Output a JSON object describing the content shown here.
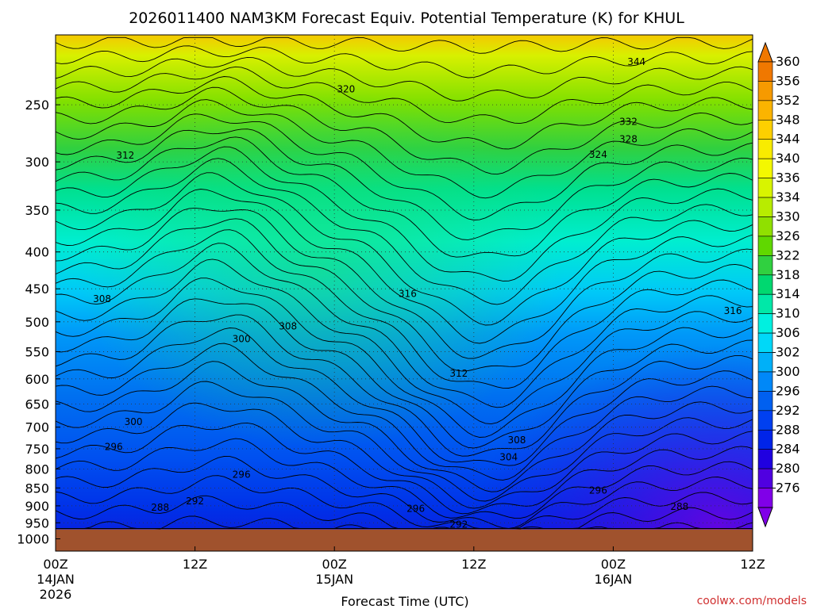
{
  "window": {
    "title": "2026011400 NAM3KM Forecast Equiv. Potential Temperature (K) for KHUL",
    "credit": "coolwx.com/models"
  },
  "chart_data": {
    "type": "heatmap",
    "title": "2026011400 NAM3KM Forecast Equiv. Potential Temperature (K) for KHUL",
    "xlabel": "Forecast Time (UTC)",
    "ylabel": "",
    "x_ticks": [
      {
        "hour": 0,
        "label": "00Z",
        "date": "14JAN",
        "year": "2026"
      },
      {
        "hour": 12,
        "label": "12Z",
        "date": "",
        "year": ""
      },
      {
        "hour": 24,
        "label": "00Z",
        "date": "15JAN",
        "year": ""
      },
      {
        "hour": 36,
        "label": "12Z",
        "date": "",
        "year": ""
      },
      {
        "hour": 48,
        "label": "00Z",
        "date": "16JAN",
        "year": ""
      },
      {
        "hour": 60,
        "label": "12Z",
        "date": "",
        "year": ""
      }
    ],
    "xlim": [
      0,
      60
    ],
    "y_ticks": [
      250,
      300,
      350,
      400,
      450,
      500,
      550,
      600,
      650,
      700,
      750,
      800,
      850,
      900,
      950,
      1000
    ],
    "ylim": [
      200,
      1040
    ],
    "y_scale": "log-pressure",
    "grid": "dotted",
    "colorbar": {
      "labels": [
        360,
        356,
        352,
        348,
        344,
        340,
        336,
        334,
        330,
        326,
        322,
        318,
        314,
        310,
        306,
        302,
        300,
        296,
        292,
        288,
        284,
        280,
        276
      ],
      "colors": [
        "#f07800",
        "#f69a00",
        "#fbb400",
        "#fdd000",
        "#f8ec00",
        "#f4f800",
        "#d8f400",
        "#b8ec00",
        "#90e000",
        "#60d800",
        "#30d040",
        "#00d870",
        "#00e8a8",
        "#00f0e0",
        "#00d8f8",
        "#00b0f8",
        "#0088f8",
        "#0060f0",
        "#0040f0",
        "#0024e8",
        "#2000e0",
        "#5000e0",
        "#8000e8"
      ],
      "extend": "both",
      "placement": "right"
    },
    "contour_labels": [
      {
        "value": "344",
        "hour": 50.0,
        "p": 218
      },
      {
        "value": "320",
        "hour": 25.0,
        "p": 238
      },
      {
        "value": "332",
        "hour": 49.3,
        "p": 264
      },
      {
        "value": "328",
        "hour": 49.3,
        "p": 279
      },
      {
        "value": "324",
        "hour": 46.7,
        "p": 293
      },
      {
        "value": "312",
        "hour": 6.0,
        "p": 294
      },
      {
        "value": "316",
        "hour": 30.3,
        "p": 457
      },
      {
        "value": "308",
        "hour": 4.0,
        "p": 465
      },
      {
        "value": "316",
        "hour": 58.3,
        "p": 483
      },
      {
        "value": "308",
        "hour": 20.0,
        "p": 507
      },
      {
        "value": "300",
        "hour": 16.0,
        "p": 528
      },
      {
        "value": "312",
        "hour": 34.7,
        "p": 590
      },
      {
        "value": "300",
        "hour": 6.7,
        "p": 688
      },
      {
        "value": "308",
        "hour": 39.7,
        "p": 730
      },
      {
        "value": "296",
        "hour": 5.0,
        "p": 745
      },
      {
        "value": "304",
        "hour": 39.0,
        "p": 770
      },
      {
        "value": "296",
        "hour": 16.0,
        "p": 815
      },
      {
        "value": "296",
        "hour": 46.7,
        "p": 857
      },
      {
        "value": "292",
        "hour": 12.0,
        "p": 887
      },
      {
        "value": "288",
        "hour": 9.0,
        "p": 905
      },
      {
        "value": "296",
        "hour": 31.0,
        "p": 908
      },
      {
        "value": "288",
        "hour": 53.7,
        "p": 902
      },
      {
        "value": "292",
        "hour": 34.7,
        "p": 955
      }
    ],
    "terrain": {
      "color": "#a0522d",
      "pressure": 970
    }
  }
}
